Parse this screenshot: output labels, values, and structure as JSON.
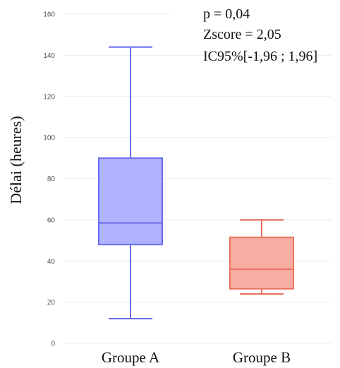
{
  "chart_data": {
    "type": "box",
    "title": "",
    "xlabel": "",
    "ylabel": "Délai (heures)",
    "ylim": [
      0,
      160
    ],
    "yticks": [
      0,
      20,
      40,
      60,
      80,
      100,
      120,
      140,
      160
    ],
    "grid": true,
    "categories": [
      "Groupe A",
      "Groupe B"
    ],
    "series": [
      {
        "category": "Groupe A",
        "min": 12,
        "q1": 48,
        "median": 58.5,
        "q3": 90,
        "max": 144,
        "color": "#6b6bef",
        "fill": "#b0b3ff"
      },
      {
        "category": "Groupe B",
        "min": 24,
        "q1": 26.5,
        "median": 36,
        "q3": 51.5,
        "max": 60,
        "color": "#e8705e",
        "fill": "#f6aea2"
      }
    ],
    "annotations": [
      "p = 0,04",
      "Zscore = 2,05",
      "IC95%[-1,96 ; 1,96]"
    ]
  }
}
